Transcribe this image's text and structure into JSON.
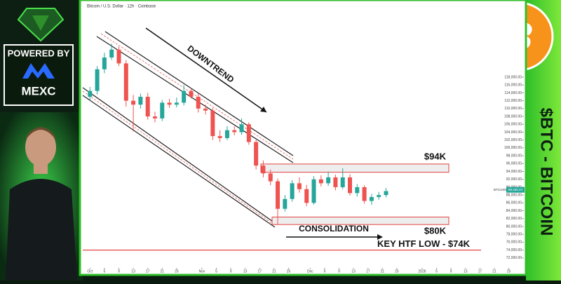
{
  "branding": {
    "powered_by": "POWERED BY",
    "sponsor": "MEXC",
    "headline": "$BTC - BITCOIN",
    "coin_symbol": "B"
  },
  "chart_data": {
    "type": "candlestick",
    "title": "Bitcoin / U.S. Dollar · 12h · Coinbase",
    "symbol": "BTCUSD",
    "up_color": "#26a69a",
    "down_color": "#ef5350",
    "x": [
      1,
      3,
      5,
      7,
      9,
      11,
      13,
      15,
      17,
      19,
      21,
      23,
      25,
      27,
      29,
      31,
      33,
      35,
      37,
      39,
      41,
      43,
      45,
      47,
      49,
      51,
      53,
      55,
      57,
      59,
      61,
      63,
      65,
      67,
      69,
      71,
      73,
      75,
      77,
      79,
      81,
      83
    ],
    "open": [
      113000,
      114500,
      120000,
      123000,
      125000,
      121500,
      112000,
      111000,
      113000,
      108000,
      107500,
      111500,
      111000,
      111500,
      114500,
      113000,
      110000,
      109500,
      103000,
      102500,
      104500,
      104000,
      106000,
      101500,
      95500,
      93500,
      91500,
      84500,
      87000,
      91000,
      89500,
      86000,
      92000,
      91000,
      92500,
      90000,
      92500,
      88500,
      90000,
      86500,
      87500,
      88000
    ],
    "high": [
      115500,
      120800,
      124200,
      126500,
      125800,
      122300,
      113500,
      113800,
      114000,
      109200,
      112200,
      112500,
      112800,
      116000,
      115200,
      113800,
      111000,
      110200,
      104500,
      105500,
      105500,
      107500,
      106500,
      102000,
      96800,
      94500,
      92200,
      88000,
      91800,
      92500,
      90600,
      92800,
      93000,
      94000,
      93200,
      94800,
      93300,
      90800,
      90500,
      88300,
      88800,
      89800
    ],
    "low": [
      112200,
      113600,
      119000,
      122400,
      120800,
      110500,
      104200,
      110000,
      107200,
      106500,
      106800,
      110200,
      110300,
      110800,
      112600,
      109000,
      108500,
      102000,
      101500,
      102000,
      103200,
      103300,
      100800,
      94500,
      92500,
      90500,
      80600,
      83800,
      86300,
      88600,
      85200,
      85600,
      90200,
      90300,
      89200,
      89500,
      87900,
      87600,
      85800,
      85500,
      86800,
      87400
    ],
    "close": [
      114500,
      120000,
      123000,
      125000,
      121500,
      112000,
      111000,
      113000,
      108000,
      107500,
      111500,
      111000,
      111500,
      114500,
      113000,
      110000,
      109500,
      103000,
      102500,
      104500,
      104000,
      106000,
      101500,
      95500,
      93500,
      91500,
      84500,
      87000,
      91000,
      89500,
      86000,
      92000,
      91000,
      92500,
      90000,
      92500,
      88500,
      90000,
      86500,
      87500,
      88000,
      89000
    ],
    "last_price": {
      "value": 89330.24,
      "label": "89,330.24"
    },
    "xlim": [
      -1,
      120
    ],
    "ylim": [
      68400,
      136200
    ],
    "xticks": [
      {
        "value": 1,
        "label": "Oct"
      },
      {
        "value": 5,
        "label": "5"
      },
      {
        "value": 9,
        "label": "9"
      },
      {
        "value": 13,
        "label": "13"
      },
      {
        "value": 17,
        "label": "17"
      },
      {
        "value": 21,
        "label": "21"
      },
      {
        "value": 25,
        "label": "25"
      },
      {
        "value": 32,
        "label": "Nov"
      },
      {
        "value": 36,
        "label": "5"
      },
      {
        "value": 40,
        "label": "9"
      },
      {
        "value": 44,
        "label": "13"
      },
      {
        "value": 48,
        "label": "17"
      },
      {
        "value": 52,
        "label": "21"
      },
      {
        "value": 56,
        "label": "25"
      },
      {
        "value": 62,
        "label": "Dec"
      },
      {
        "value": 66,
        "label": "5"
      },
      {
        "value": 70,
        "label": "9"
      },
      {
        "value": 74,
        "label": "13"
      },
      {
        "value": 78,
        "label": "17"
      },
      {
        "value": 82,
        "label": "21"
      },
      {
        "value": 86,
        "label": "25"
      },
      {
        "value": 93,
        "label": "2026"
      },
      {
        "value": 97,
        "label": "5"
      },
      {
        "value": 101,
        "label": "9"
      },
      {
        "value": 105,
        "label": "13"
      },
      {
        "value": 109,
        "label": "17"
      },
      {
        "value": 113,
        "label": "21"
      },
      {
        "value": 117,
        "label": "25"
      }
    ],
    "yticks": [
      {
        "value": 72000,
        "label": "72,000.00"
      },
      {
        "value": 74000,
        "label": "74,000.00"
      },
      {
        "value": 76000,
        "label": "76,000.00"
      },
      {
        "value": 78000,
        "label": "78,000.00"
      },
      {
        "value": 80000,
        "label": "80,000.00"
      },
      {
        "value": 82000,
        "label": "82,000.00"
      },
      {
        "value": 84000,
        "label": "84,000.00"
      },
      {
        "value": 86000,
        "label": "86,000.00"
      },
      {
        "value": 88000,
        "label": "88,000.00"
      },
      {
        "value": 90000,
        "label": "90,000.00"
      },
      {
        "value": 92000,
        "label": "92,000.00"
      },
      {
        "value": 94000,
        "label": "94,000.00"
      },
      {
        "value": 96000,
        "label": "96,000.00"
      },
      {
        "value": 98000,
        "label": "98,000.00"
      },
      {
        "value": 100000,
        "label": "100,000.00"
      },
      {
        "value": 102000,
        "label": "102,000.00"
      },
      {
        "value": 104000,
        "label": "104,000.00"
      },
      {
        "value": 106000,
        "label": "106,000.00"
      },
      {
        "value": 108000,
        "label": "108,000.00"
      },
      {
        "value": 110000,
        "label": "110,000.00"
      },
      {
        "value": 112000,
        "label": "112,000.00"
      },
      {
        "value": 114000,
        "label": "114,000.00"
      },
      {
        "value": 116000,
        "label": "116,000.00"
      },
      {
        "value": 118000,
        "label": "118,000.00"
      }
    ],
    "annotations": {
      "trend": "DOWNTREND",
      "consolidation": "CONSOLIDATION"
    },
    "levels": [
      {
        "label": "$94K",
        "range": [
          93800,
          95900
        ]
      },
      {
        "label": "$80K",
        "range": [
          80500,
          82400
        ]
      }
    ],
    "key_level": {
      "label": "KEY HTF LOW - $74K",
      "value": 74000
    }
  }
}
